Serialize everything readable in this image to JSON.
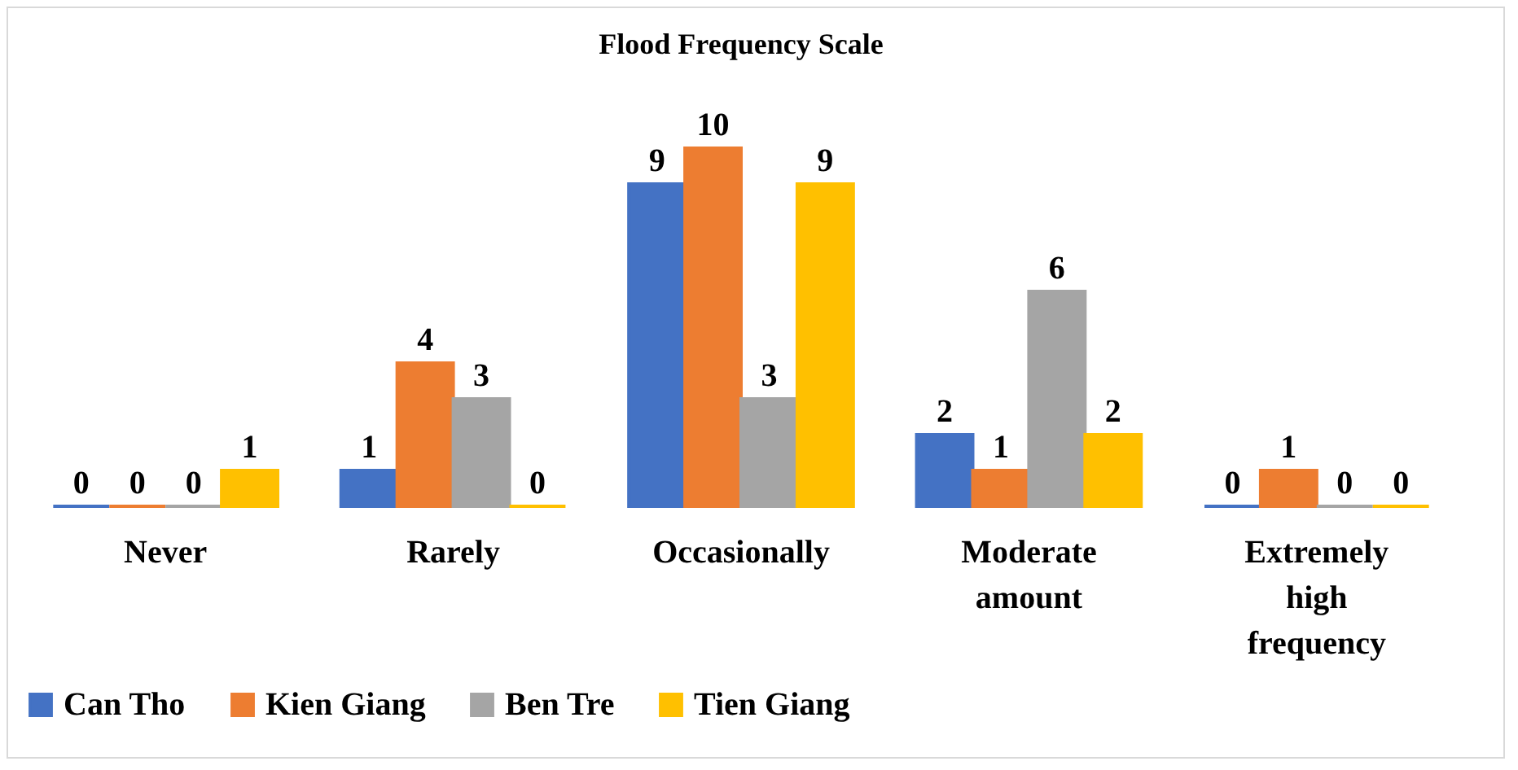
{
  "chart_data": {
    "type": "bar",
    "title": "Flood Frequency Scale",
    "categories": [
      "Never",
      "Rarely",
      "Occasionally",
      "Moderate amount",
      "Extremely high frequency"
    ],
    "series": [
      {
        "name": "Can Tho",
        "color": "#4472c4",
        "values": [
          0,
          1,
          9,
          2,
          0
        ]
      },
      {
        "name": "Kien Giang",
        "color": "#ed7d31",
        "values": [
          0,
          4,
          10,
          1,
          1
        ]
      },
      {
        "name": "Ben Tre",
        "color": "#a5a5a5",
        "values": [
          0,
          3,
          3,
          6,
          0
        ]
      },
      {
        "name": "Tien Giang",
        "color": "#ffc000",
        "values": [
          1,
          0,
          9,
          2,
          0
        ]
      }
    ],
    "data_labels": true,
    "legend": "bottom",
    "grid": false
  }
}
